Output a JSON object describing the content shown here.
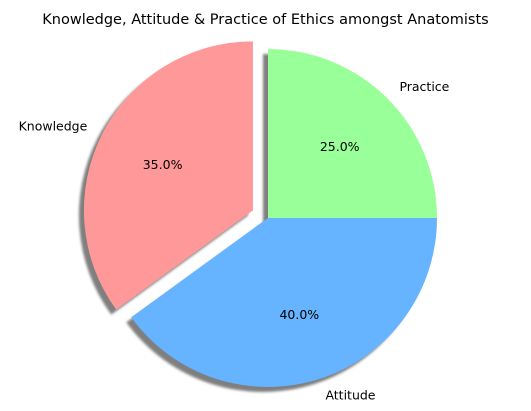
{
  "chart_data": {
    "type": "pie",
    "title": "Knowledge, Attitude & Practice of Ethics amongst Anatomists",
    "slices": [
      {
        "label": "Knowledge",
        "value": 35.0,
        "pct_label": "35.0%",
        "color": "#ff9999",
        "exploded": true
      },
      {
        "label": "Attitude",
        "value": 40.0,
        "pct_label": "40.0%",
        "color": "#66b3ff",
        "exploded": false
      },
      {
        "label": "Practice",
        "value": 25.0,
        "pct_label": "25.0%",
        "color": "#99ff99",
        "exploded": false
      }
    ],
    "start_angle_deg": 90,
    "direction": "counterclockwise",
    "shadow": true,
    "legend": "none"
  }
}
